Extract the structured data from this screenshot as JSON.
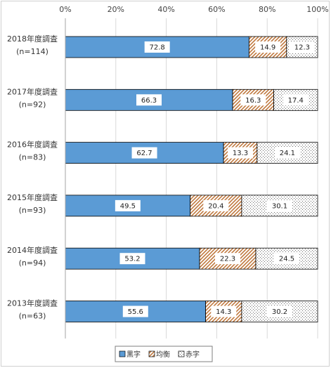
{
  "chart_data": {
    "type": "bar",
    "orientation": "horizontal",
    "stacked": "percent",
    "categories": [
      [
        "2018年度調査",
        "(n=114)"
      ],
      [
        "2017年度調査",
        "(n=92)"
      ],
      [
        "2016年度調査",
        "(n=83)"
      ],
      [
        "2015年度調査",
        "(n=93)"
      ],
      [
        "2014年度調査",
        "(n=94)"
      ],
      [
        "2013年度調査",
        "(n=63)"
      ]
    ],
    "series": [
      {
        "name": "黒字",
        "values": [
          72.8,
          66.3,
          62.7,
          49.5,
          53.2,
          55.6
        ],
        "color": "#5b9bd5",
        "pattern": "solid"
      },
      {
        "name": "均衡",
        "values": [
          14.9,
          16.3,
          13.3,
          20.4,
          22.3,
          14.3
        ],
        "color": "#c0793f",
        "pattern": "diagonal-hatch"
      },
      {
        "name": "赤字",
        "values": [
          12.3,
          17.4,
          24.1,
          30.1,
          24.5,
          30.2
        ],
        "color": "#666666",
        "pattern": "dots"
      }
    ],
    "x_ticks": [
      "0%",
      "20%",
      "40%",
      "60%",
      "80%",
      "100%"
    ],
    "xlim": [
      0,
      100
    ],
    "grid": true,
    "legend_position": "bottom",
    "data_labels": true
  }
}
